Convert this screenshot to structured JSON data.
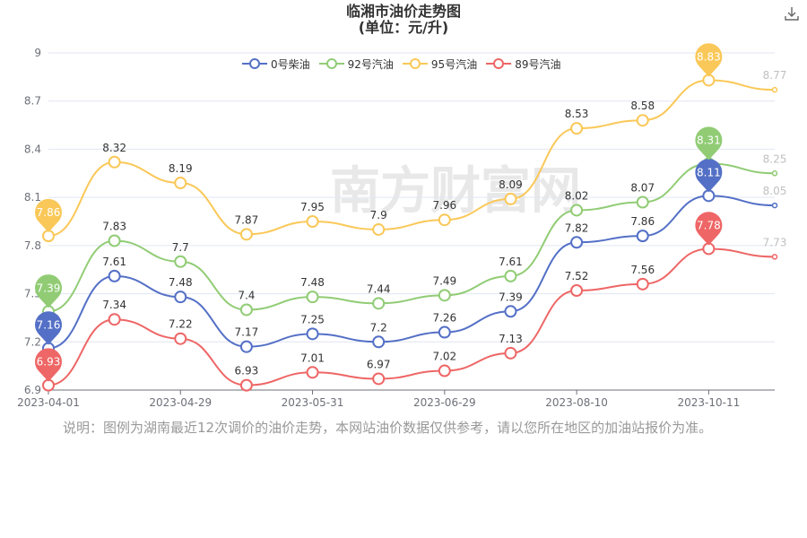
{
  "header": {
    "title_line1": "临湘市油价走势图",
    "title_line2": "(单位：元/升)"
  },
  "watermark": "南方财富网",
  "note": "说明：图例为湖南最近12次调价的油价走势，本网站油价数据仅供参考，请以您所在地区的加油站报价为准。",
  "chart_data": {
    "type": "line",
    "x_ticks": [
      "2023-04-01",
      "2023-04-29",
      "2023-05-31",
      "2023-06-29",
      "2023-08-10",
      "2023-10-11"
    ],
    "ylim": [
      6.9,
      9
    ],
    "y_ticks": [
      6.9,
      7.2,
      7.5,
      7.8,
      8.1,
      8.4,
      8.7,
      9
    ],
    "grid": "horizontal",
    "legend_position": "top-center",
    "series": [
      {
        "name": "0号柴油",
        "color": "#5470c6",
        "values": [
          7.16,
          7.61,
          7.48,
          7.17,
          7.25,
          7.2,
          7.26,
          7.39,
          7.82,
          7.86,
          8.11,
          8.05
        ]
      },
      {
        "name": "92号汽油",
        "color": "#91cc75",
        "values": [
          7.39,
          7.83,
          7.7,
          7.4,
          7.48,
          7.44,
          7.49,
          7.61,
          8.02,
          8.07,
          8.31,
          8.25
        ]
      },
      {
        "name": "95号汽油",
        "color": "#fac858",
        "values": [
          7.86,
          8.32,
          8.19,
          7.87,
          7.95,
          7.9,
          7.96,
          8.09,
          8.53,
          8.58,
          8.83,
          8.77
        ]
      },
      {
        "name": "89号汽油",
        "color": "#ee6666",
        "values": [
          6.93,
          7.34,
          7.22,
          6.93,
          7.01,
          6.97,
          7.02,
          7.13,
          7.52,
          7.56,
          7.78,
          7.73
        ]
      }
    ],
    "pins": [
      {
        "series": 0,
        "point": 0,
        "label": "7.16"
      },
      {
        "series": 0,
        "point": 10,
        "label": "8.11"
      },
      {
        "series": 1,
        "point": 0,
        "label": "7.39"
      },
      {
        "series": 1,
        "point": 10,
        "label": "8.31"
      },
      {
        "series": 2,
        "point": 0,
        "label": "7.86"
      },
      {
        "series": 2,
        "point": 10,
        "label": "8.83"
      },
      {
        "series": 3,
        "point": 0,
        "label": "6.93"
      },
      {
        "series": 3,
        "point": 10,
        "label": "7.78"
      }
    ]
  },
  "icons": {
    "download": "download-icon"
  }
}
